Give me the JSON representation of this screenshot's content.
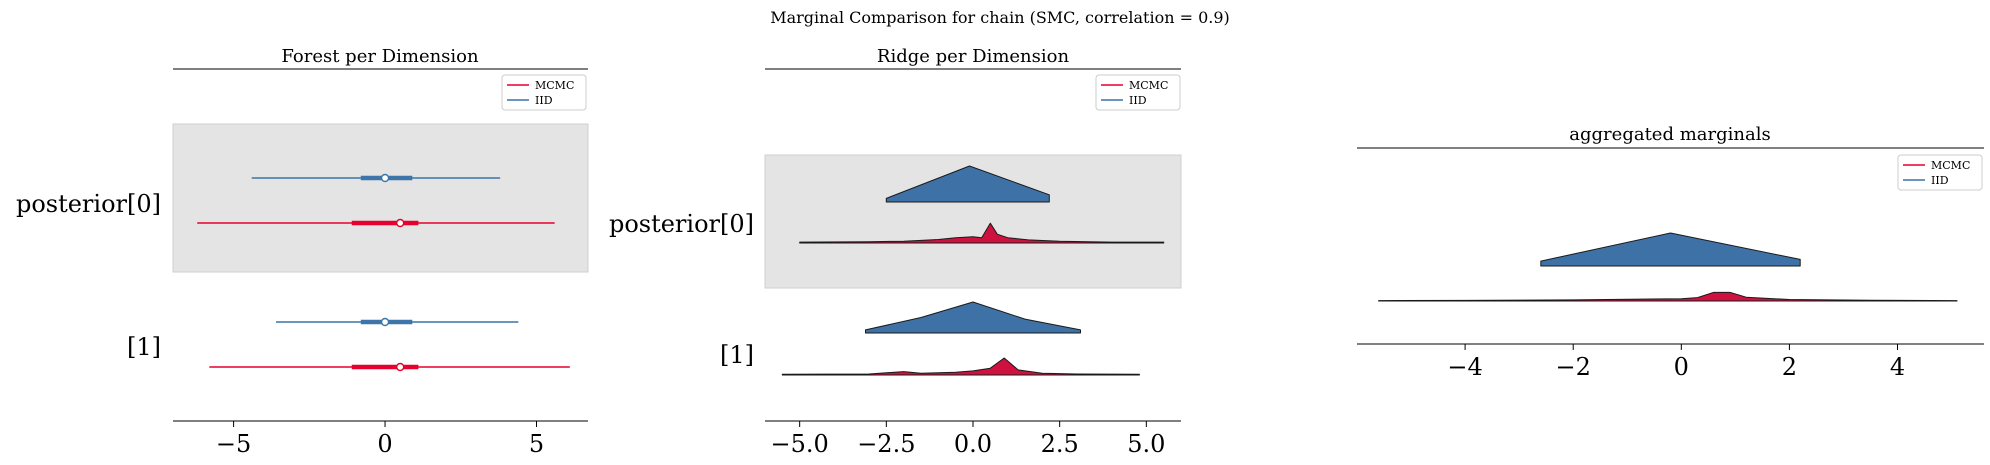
{
  "suptitle": "Marginal Comparison for chain (SMC, correlation = 0.9)",
  "colors": {
    "mcmc": "#e6002e",
    "iid": "#3d74aa",
    "shade": "#e4e4e4",
    "mcmc_fill": "#cf1140",
    "iid_fill": "#3e72a6"
  },
  "legend": [
    {
      "label": "MCMC",
      "color": "#e6002e"
    },
    {
      "label": "IID",
      "color": "#3d74aa"
    }
  ],
  "chart_data": [
    {
      "type": "forest",
      "title": "Forest per Dimension",
      "xlim": [
        -7,
        6.7
      ],
      "xticks": [
        -5,
        0,
        5
      ],
      "xtick_labels": [
        "−5",
        "0",
        "5"
      ],
      "rows": [
        {
          "label": "posterior[0]",
          "shaded": true,
          "iid": {
            "lo": -4.4,
            "q1": -0.8,
            "median": 0.0,
            "q3": 0.9,
            "hi": 3.8
          },
          "mcmc": {
            "lo": -6.2,
            "q1": -1.1,
            "median": 0.5,
            "q3": 1.1,
            "hi": 5.6
          }
        },
        {
          "label": "[1]",
          "shaded": false,
          "iid": {
            "lo": -3.6,
            "q1": -0.8,
            "median": 0.0,
            "q3": 0.9,
            "hi": 4.4
          },
          "mcmc": {
            "lo": -5.8,
            "q1": -1.1,
            "median": 0.5,
            "q3": 1.1,
            "hi": 6.1
          }
        }
      ]
    },
    {
      "type": "ridge",
      "title": "Ridge per Dimension",
      "xlim": [
        -6.0,
        6.0
      ],
      "xticks": [
        -5.0,
        -2.5,
        0.0,
        2.5,
        5.0
      ],
      "xtick_labels": [
        "−5.0",
        "−2.5",
        "0.0",
        "2.5",
        "5.0"
      ],
      "rows": [
        {
          "label": "posterior[0]",
          "shaded": true,
          "iid": [
            [
              -2.5,
              0.0
            ],
            [
              -2.5,
              0.1
            ],
            [
              -0.1,
              1.0
            ],
            [
              2.2,
              0.2
            ],
            [
              2.2,
              0.0
            ]
          ],
          "mcmc": [
            [
              -5.0,
              0.0
            ],
            [
              -5.0,
              0.02
            ],
            [
              -3.0,
              0.03
            ],
            [
              -2.0,
              0.04
            ],
            [
              -1.0,
              0.08
            ],
            [
              -0.5,
              0.12
            ],
            [
              0.0,
              0.14
            ],
            [
              0.25,
              0.12
            ],
            [
              0.5,
              0.45
            ],
            [
              0.7,
              0.2
            ],
            [
              1.0,
              0.12
            ],
            [
              1.6,
              0.07
            ],
            [
              2.5,
              0.04
            ],
            [
              4.0,
              0.02
            ],
            [
              5.5,
              0.02
            ],
            [
              5.5,
              0.0
            ]
          ]
        },
        {
          "label": "[1]",
          "shaded": false,
          "iid": [
            [
              -3.1,
              0.0
            ],
            [
              -3.1,
              0.1
            ],
            [
              -1.5,
              0.5
            ],
            [
              0.0,
              1.0
            ],
            [
              1.5,
              0.45
            ],
            [
              3.1,
              0.1
            ],
            [
              3.1,
              0.0
            ]
          ],
          "mcmc": [
            [
              -5.5,
              0.0
            ],
            [
              -5.5,
              0.02
            ],
            [
              -3.0,
              0.03
            ],
            [
              -2.0,
              0.1
            ],
            [
              -1.5,
              0.05
            ],
            [
              -0.5,
              0.08
            ],
            [
              0.0,
              0.12
            ],
            [
              0.5,
              0.2
            ],
            [
              0.9,
              0.5
            ],
            [
              1.3,
              0.15
            ],
            [
              2.0,
              0.05
            ],
            [
              3.0,
              0.03
            ],
            [
              4.8,
              0.02
            ],
            [
              4.8,
              0.0
            ]
          ]
        }
      ]
    },
    {
      "type": "ridge",
      "title": "aggregated marginals",
      "xlim": [
        -6.0,
        5.6
      ],
      "xticks": [
        -4,
        -2,
        0,
        2,
        4
      ],
      "xtick_labels": [
        "−4",
        "−2",
        "0",
        "2",
        "4"
      ],
      "rows": [
        {
          "label": "",
          "shaded": false,
          "iid": [
            [
              -2.6,
              0.0
            ],
            [
              -2.6,
              0.15
            ],
            [
              -0.2,
              1.0
            ],
            [
              2.2,
              0.2
            ],
            [
              2.2,
              0.0
            ]
          ],
          "mcmc": [
            [
              -5.6,
              0.0
            ],
            [
              -5.6,
              0.02
            ],
            [
              -4.0,
              0.03
            ],
            [
              -2.0,
              0.06
            ],
            [
              0.0,
              0.12
            ],
            [
              0.3,
              0.18
            ],
            [
              0.6,
              0.45
            ],
            [
              0.9,
              0.45
            ],
            [
              1.2,
              0.2
            ],
            [
              2.0,
              0.08
            ],
            [
              3.5,
              0.04
            ],
            [
              5.1,
              0.02
            ],
            [
              5.1,
              0.0
            ]
          ]
        }
      ]
    }
  ]
}
